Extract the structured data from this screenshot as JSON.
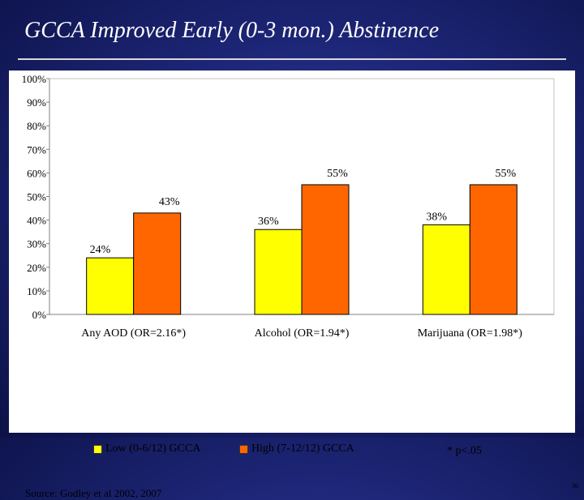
{
  "slide": {
    "title": "GCCA Improved Early (0-3 mon.) Abstinence",
    "footnote": "* p<.05",
    "source": "Source: Godley et al 2002, 2007",
    "page_number": "36"
  },
  "colors": {
    "background": "#1d2677",
    "low": "#ffff00",
    "high": "#ff6600"
  },
  "chart_data": {
    "type": "bar",
    "categories": [
      "Any AOD (OR=2.16*)",
      "Alcohol (OR=1.94*)",
      "Marijuana (OR=1.98*)"
    ],
    "series": [
      {
        "name": "Low (0-6/12) GCCA",
        "values": [
          24,
          36,
          38
        ],
        "labels": [
          "24%",
          "36%",
          "38%"
        ],
        "color": "#ffff00"
      },
      {
        "name": "High (7-12/12) GCCA",
        "values": [
          43,
          55,
          55
        ],
        "labels": [
          "43%",
          "55%",
          "55%"
        ],
        "color": "#ff6600"
      }
    ],
    "y_ticks": [
      {
        "value": 0,
        "label": "0%"
      },
      {
        "value": 10,
        "label": "10%"
      },
      {
        "value": 20,
        "label": "20%"
      },
      {
        "value": 30,
        "label": "30%"
      },
      {
        "value": 40,
        "label": "40%"
      },
      {
        "value": 50,
        "label": "50%"
      },
      {
        "value": 60,
        "label": "60%"
      },
      {
        "value": 70,
        "label": "70%"
      },
      {
        "value": 80,
        "label": "80%"
      },
      {
        "value": 90,
        "label": "90%"
      },
      {
        "value": 100,
        "label": "100%"
      }
    ],
    "ylim": [
      0,
      100
    ],
    "grid": false,
    "legend": "bottom"
  }
}
